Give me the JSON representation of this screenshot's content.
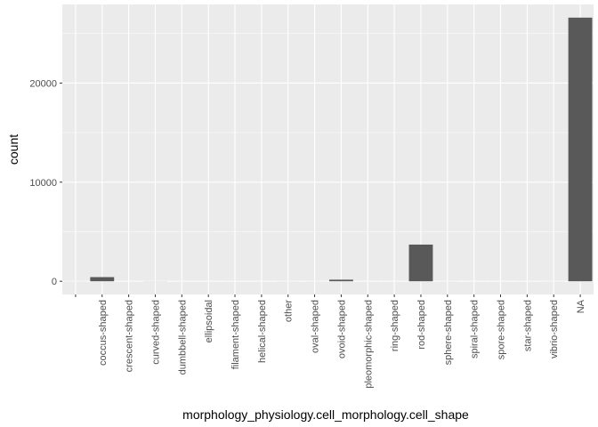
{
  "chart_data": {
    "type": "bar",
    "xlabel": "morphology_physiology.cell_morphology.cell_shape",
    "ylabel": "count",
    "categories": [
      "",
      "coccus-shaped",
      "crescent-shaped",
      "curved-shaped",
      "dumbbell-shaped",
      "ellipsoidal",
      "filament-shaped",
      "helical-shaped",
      "other",
      "oval-shaped",
      "ovoid-shaped",
      "pleomorphic-shaped",
      "ring-shaped",
      "rod-shaped",
      "sphere-shaped",
      "spiral-shaped",
      "spore-shaped",
      "star-shaped",
      "vibrio-shaped",
      "NA"
    ],
    "values": [
      5,
      420,
      2,
      8,
      2,
      2,
      2,
      2,
      3,
      3,
      160,
      2,
      2,
      3700,
      3,
      2,
      2,
      2,
      3,
      26600
    ],
    "yticks": [
      0,
      10000,
      20000
    ],
    "ylim": [
      -1330,
      27930
    ],
    "grid": true,
    "colors": {
      "bar": "#595959",
      "panel": "#ebebeb",
      "grid_major": "#ffffff",
      "text": "#4d4d4d"
    }
  }
}
